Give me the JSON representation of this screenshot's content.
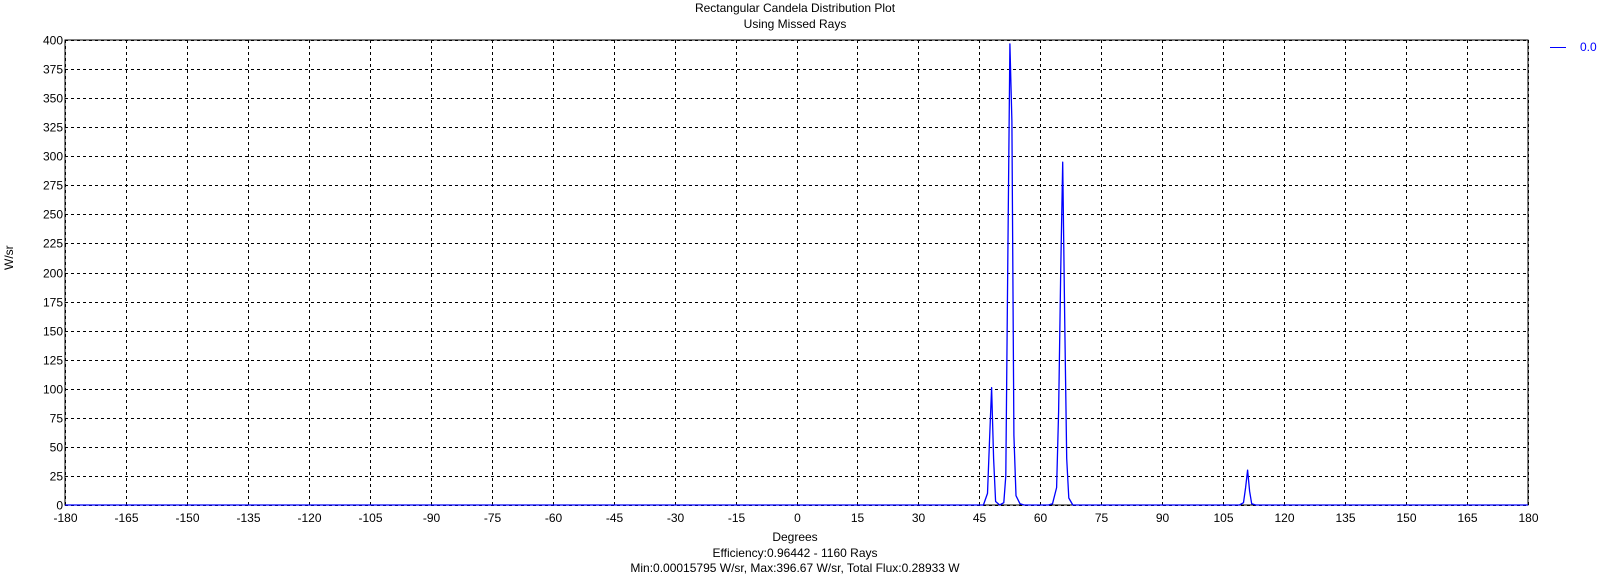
{
  "chart_data": {
    "type": "line",
    "title": "Rectangular Candela Distribution Plot",
    "subtitle": "Using Missed Rays",
    "xlabel": "Degrees",
    "ylabel": "W/sr",
    "xlim": [
      -180,
      180
    ],
    "ylim": [
      0,
      400
    ],
    "x_ticks": [
      -180,
      -165,
      -150,
      -135,
      -120,
      -105,
      -90,
      -75,
      -60,
      -45,
      -30,
      -15,
      0,
      15,
      30,
      45,
      60,
      75,
      90,
      105,
      120,
      135,
      150,
      165,
      180
    ],
    "y_ticks": [
      0,
      25,
      50,
      75,
      100,
      125,
      150,
      175,
      200,
      225,
      250,
      275,
      300,
      325,
      350,
      375,
      400
    ],
    "grid": true,
    "grid_style": "dashed",
    "legend_position": "top-right",
    "series": [
      {
        "name": "0.0",
        "color": "#0000ff",
        "x": [
          -180,
          40,
          46,
          47,
          47.5,
          48,
          48.5,
          49,
          50,
          51,
          51.5,
          52,
          52.5,
          53,
          53.5,
          54,
          55,
          56,
          62,
          63,
          64,
          64.5,
          65,
          65.5,
          66,
          66.5,
          67,
          68,
          109,
          110,
          110.5,
          111,
          111.5,
          112,
          113,
          180
        ],
        "y": [
          0,
          0,
          0,
          10,
          55,
          101,
          40,
          3,
          0,
          2,
          25,
          210,
          396.67,
          330,
          60,
          8,
          1,
          0,
          0,
          1,
          15,
          80,
          200,
          295,
          160,
          40,
          6,
          0,
          0,
          2,
          15,
          30,
          12,
          1,
          0,
          0
        ]
      }
    ]
  },
  "footer": {
    "efficiency": "Efficiency:0.96442 - 1160 Rays",
    "stats": "Min:0.00015795 W/sr, Max:396.67 W/sr, Total Flux:0.28933 W"
  }
}
